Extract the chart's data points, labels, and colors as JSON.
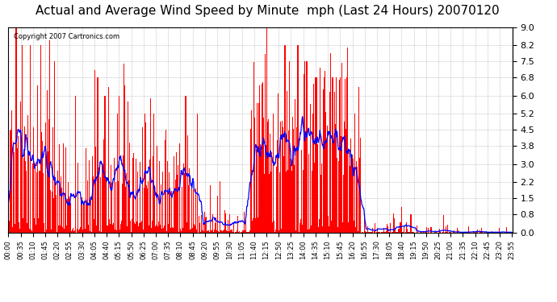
{
  "title": "Actual and Average Wind Speed by Minute  mph (Last 24 Hours) 20070120",
  "copyright_text": "Copyright 2007 Cartronics.com",
  "yticks": [
    0.0,
    0.8,
    1.5,
    2.2,
    3.0,
    3.8,
    4.5,
    5.2,
    6.0,
    6.8,
    7.5,
    8.2,
    9.0
  ],
  "ymax": 9.0,
  "bar_color": "#FF0000",
  "line_color": "#0000FF",
  "bg_color": "#FFFFFF",
  "grid_color": "#AAAAAA",
  "title_fontsize": 11,
  "xlabel_fontsize": 6,
  "ylabel_fontsize": 8,
  "xtick_labels": [
    "00:00",
    "00:35",
    "01:10",
    "01:45",
    "02:20",
    "02:55",
    "03:30",
    "04:05",
    "04:40",
    "05:15",
    "05:50",
    "06:25",
    "07:00",
    "07:35",
    "08:10",
    "08:45",
    "09:20",
    "09:55",
    "10:30",
    "11:05",
    "11:40",
    "12:15",
    "12:50",
    "13:25",
    "14:00",
    "14:35",
    "15:10",
    "15:45",
    "16:20",
    "16:55",
    "17:30",
    "18:05",
    "18:40",
    "19:15",
    "19:50",
    "20:25",
    "21:00",
    "21:35",
    "22:10",
    "22:45",
    "23:20",
    "23:55"
  ]
}
